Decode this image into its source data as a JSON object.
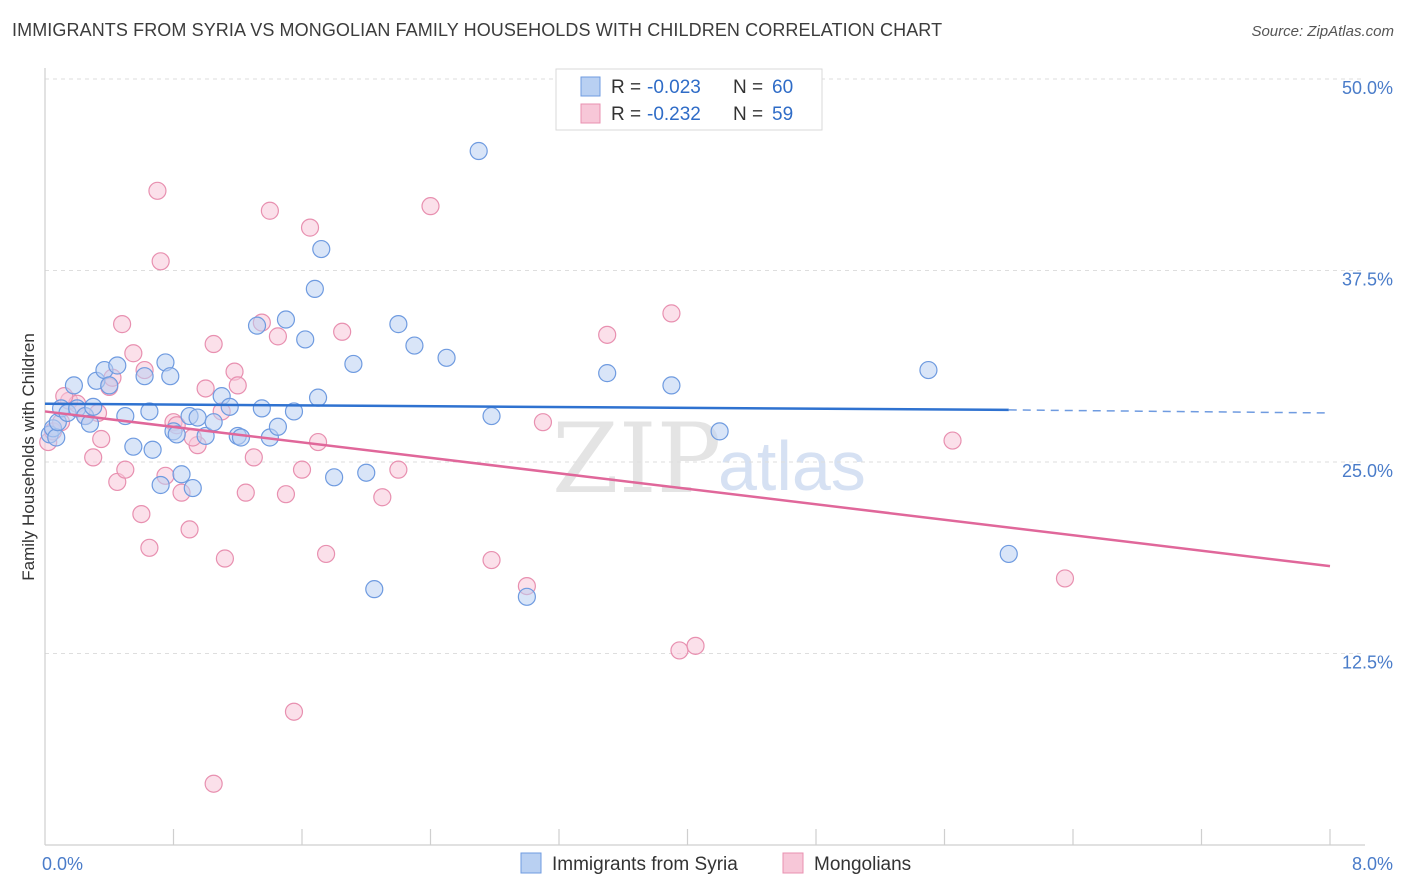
{
  "header": {
    "title": "IMMIGRANTS FROM SYRIA VS MONGOLIAN FAMILY HOUSEHOLDS WITH CHILDREN CORRELATION CHART",
    "source": "Source: ZipAtlas.com"
  },
  "watermark": {
    "zip": "ZIP",
    "atlas": "atlas"
  },
  "chart_data": {
    "type": "scatter",
    "title": "IMMIGRANTS FROM SYRIA VS MONGOLIAN FAMILY HOUSEHOLDS WITH CHILDREN CORRELATION CHART",
    "xlabel": "",
    "ylabel": "Family Households with Children",
    "xlim": [
      0,
      8
    ],
    "ylim": [
      0,
      50
    ],
    "x_tick_labels": {
      "min": "0.0%",
      "max": "8.0%"
    },
    "y_ticks": [
      {
        "value": 12.5,
        "label": "12.5%"
      },
      {
        "value": 25.0,
        "label": "25.0%"
      },
      {
        "value": 37.5,
        "label": "37.5%"
      },
      {
        "value": 50.0,
        "label": "50.0%"
      }
    ],
    "legend": {
      "entries": [
        {
          "r_label": "R =",
          "r_value": "-0.023",
          "n_label": "N =",
          "n_value": "60"
        },
        {
          "r_label": "R =",
          "r_value": "-0.232",
          "n_label": "N =",
          "n_value": "59"
        }
      ]
    },
    "series": [
      {
        "name": "Immigrants from Syria",
        "color": "#6f9be0",
        "fill": "#b9d0f2",
        "trend": {
          "x0": 0.0,
          "y0": 28.8,
          "x1": 6.0,
          "y1": 28.4,
          "dash_to_x": 8.0,
          "dash_to_y": 28.2
        },
        "points": [
          [
            0.03,
            26.8
          ],
          [
            0.05,
            27.2
          ],
          [
            0.07,
            26.6
          ],
          [
            0.08,
            27.6
          ],
          [
            0.1,
            28.5
          ],
          [
            0.14,
            28.2
          ],
          [
            0.18,
            30.0
          ],
          [
            0.2,
            28.5
          ],
          [
            0.25,
            28.0
          ],
          [
            0.28,
            27.5
          ],
          [
            0.3,
            28.6
          ],
          [
            0.32,
            30.3
          ],
          [
            0.37,
            31.0
          ],
          [
            0.4,
            30.0
          ],
          [
            0.45,
            31.3
          ],
          [
            0.5,
            28.0
          ],
          [
            0.55,
            26.0
          ],
          [
            0.62,
            30.6
          ],
          [
            0.65,
            28.3
          ],
          [
            0.67,
            25.8
          ],
          [
            0.72,
            23.5
          ],
          [
            0.75,
            31.5
          ],
          [
            0.78,
            30.6
          ],
          [
            0.8,
            27.0
          ],
          [
            0.82,
            26.8
          ],
          [
            0.85,
            24.2
          ],
          [
            0.9,
            28.0
          ],
          [
            0.92,
            23.3
          ],
          [
            0.95,
            27.9
          ],
          [
            1.0,
            26.7
          ],
          [
            1.05,
            27.6
          ],
          [
            1.1,
            29.3
          ],
          [
            1.15,
            28.6
          ],
          [
            1.2,
            26.7
          ],
          [
            1.22,
            26.6
          ],
          [
            1.32,
            33.9
          ],
          [
            1.35,
            28.5
          ],
          [
            1.4,
            26.6
          ],
          [
            1.45,
            27.3
          ],
          [
            1.5,
            34.3
          ],
          [
            1.55,
            28.3
          ],
          [
            1.62,
            33.0
          ],
          [
            1.68,
            36.3
          ],
          [
            1.72,
            38.9
          ],
          [
            1.8,
            24.0
          ],
          [
            1.92,
            31.4
          ],
          [
            2.0,
            24.3
          ],
          [
            2.05,
            16.7
          ],
          [
            2.2,
            34.0
          ],
          [
            2.3,
            32.6
          ],
          [
            2.5,
            31.8
          ],
          [
            2.7,
            45.3
          ],
          [
            2.78,
            28.0
          ],
          [
            3.0,
            16.2
          ],
          [
            3.5,
            30.8
          ],
          [
            3.9,
            30.0
          ],
          [
            4.2,
            27.0
          ],
          [
            5.5,
            31.0
          ],
          [
            6.0,
            19.0
          ],
          [
            1.7,
            29.2
          ]
        ]
      },
      {
        "name": "Mongolians",
        "color": "#e890b0",
        "fill": "#f7c7d8",
        "trend": {
          "x0": 0.0,
          "y0": 28.3,
          "x1": 8.0,
          "y1": 18.2
        },
        "points": [
          [
            0.02,
            26.3
          ],
          [
            0.05,
            27.0
          ],
          [
            0.1,
            27.6
          ],
          [
            0.15,
            29.0
          ],
          [
            0.2,
            28.8
          ],
          [
            0.25,
            28.0
          ],
          [
            0.3,
            25.3
          ],
          [
            0.35,
            26.5
          ],
          [
            0.4,
            29.9
          ],
          [
            0.42,
            30.5
          ],
          [
            0.45,
            23.7
          ],
          [
            0.48,
            34.0
          ],
          [
            0.5,
            24.5
          ],
          [
            0.55,
            32.1
          ],
          [
            0.6,
            21.6
          ],
          [
            0.62,
            31.0
          ],
          [
            0.65,
            19.4
          ],
          [
            0.7,
            42.7
          ],
          [
            0.72,
            38.1
          ],
          [
            0.75,
            24.1
          ],
          [
            0.8,
            27.6
          ],
          [
            0.85,
            23.0
          ],
          [
            0.9,
            20.6
          ],
          [
            0.95,
            26.1
          ],
          [
            1.0,
            29.8
          ],
          [
            1.05,
            32.7
          ],
          [
            1.1,
            28.3
          ],
          [
            1.12,
            18.7
          ],
          [
            1.18,
            30.9
          ],
          [
            1.2,
            30.0
          ],
          [
            1.25,
            23.0
          ],
          [
            1.3,
            25.3
          ],
          [
            1.35,
            34.1
          ],
          [
            1.4,
            41.4
          ],
          [
            1.45,
            33.2
          ],
          [
            1.5,
            22.9
          ],
          [
            1.55,
            8.7
          ],
          [
            1.6,
            24.5
          ],
          [
            1.65,
            40.3
          ],
          [
            1.7,
            26.3
          ],
          [
            1.75,
            19.0
          ],
          [
            1.85,
            33.5
          ],
          [
            2.1,
            22.7
          ],
          [
            2.2,
            24.5
          ],
          [
            2.4,
            41.7
          ],
          [
            2.78,
            18.6
          ],
          [
            3.0,
            16.9
          ],
          [
            3.1,
            27.6
          ],
          [
            3.5,
            33.3
          ],
          [
            3.9,
            34.7
          ],
          [
            3.95,
            12.7
          ],
          [
            4.05,
            13.0
          ],
          [
            5.65,
            26.4
          ],
          [
            6.35,
            17.4
          ],
          [
            1.05,
            4.0
          ],
          [
            0.82,
            27.4
          ],
          [
            0.12,
            29.3
          ],
          [
            0.33,
            28.2
          ],
          [
            0.92,
            26.6
          ]
        ]
      }
    ]
  }
}
